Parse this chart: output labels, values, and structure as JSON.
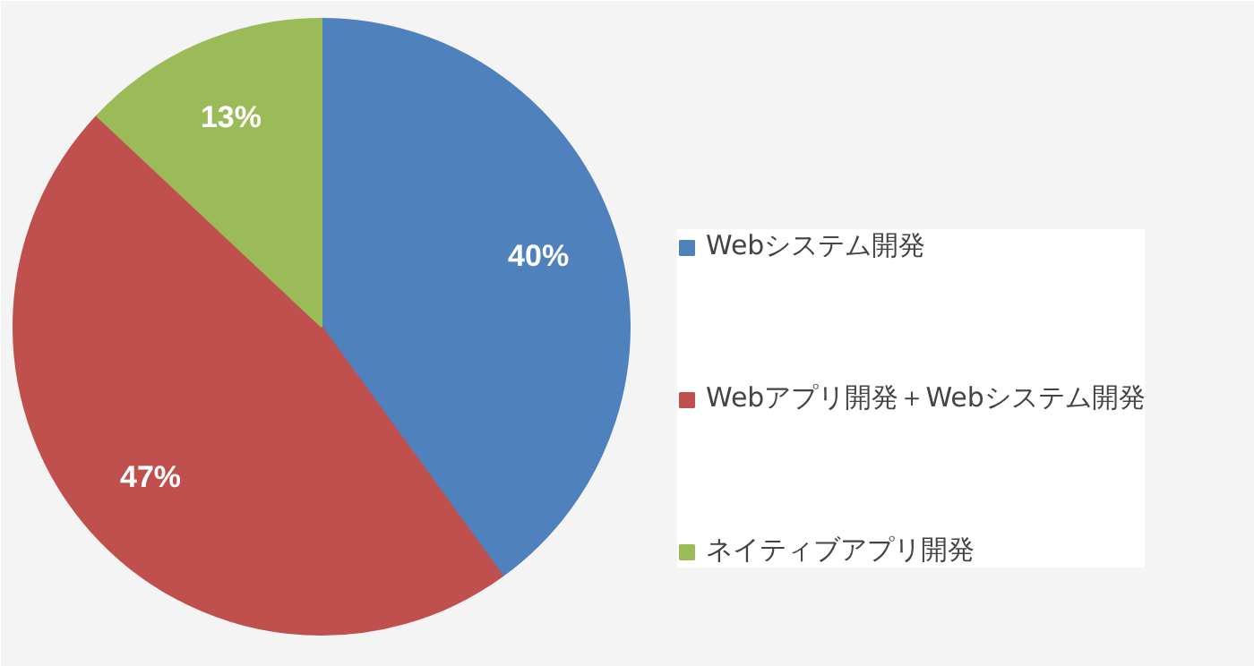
{
  "chart_data": {
    "type": "pie",
    "categories": [
      "Webシステム開発",
      "Webアプリ開発＋Webシステム開発",
      "ネイティブアプリ開発"
    ],
    "values": [
      40,
      47,
      13
    ],
    "value_labels": [
      "40%",
      "47%",
      "13%"
    ],
    "colors": [
      "#4f81bd",
      "#c0504d",
      "#9bbb59"
    ],
    "legend": "right"
  }
}
